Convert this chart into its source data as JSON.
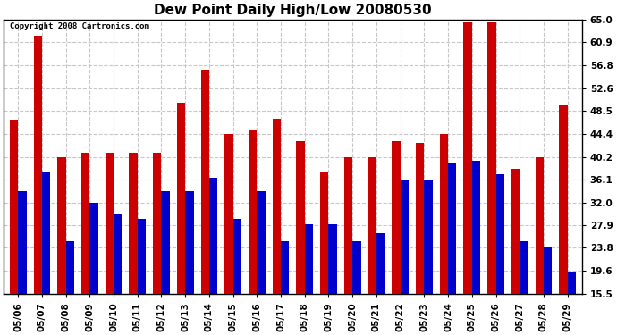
{
  "title": "Dew Point Daily High/Low 20080530",
  "copyright": "Copyright 2008 Cartronics.com",
  "dates": [
    "05/06",
    "05/07",
    "05/08",
    "05/09",
    "05/10",
    "05/11",
    "05/12",
    "05/13",
    "05/14",
    "05/15",
    "05/16",
    "05/17",
    "05/18",
    "05/19",
    "05/20",
    "05/21",
    "05/22",
    "05/23",
    "05/24",
    "05/25",
    "05/26",
    "05/27",
    "05/28",
    "05/29"
  ],
  "highs": [
    46.9,
    62.0,
    40.1,
    41.0,
    41.0,
    41.0,
    41.0,
    50.0,
    55.9,
    44.4,
    45.0,
    47.0,
    43.0,
    37.5,
    40.1,
    40.1,
    43.0,
    42.8,
    44.4,
    64.4,
    64.4,
    38.0,
    40.1,
    49.5
  ],
  "lows": [
    34.0,
    37.5,
    25.0,
    32.0,
    30.0,
    29.0,
    34.0,
    34.0,
    36.5,
    29.0,
    34.0,
    25.0,
    28.0,
    28.0,
    25.0,
    26.5,
    36.0,
    36.0,
    39.0,
    39.5,
    37.0,
    25.0,
    24.0,
    19.5
  ],
  "high_color": "#CC0000",
  "low_color": "#0000CC",
  "ylim_min": 15.5,
  "ylim_max": 65.0,
  "yticks": [
    15.5,
    19.6,
    23.8,
    27.9,
    32.0,
    36.1,
    40.2,
    44.4,
    48.5,
    52.6,
    56.8,
    60.9,
    65.0
  ],
  "background_color": "#ffffff",
  "plot_bg_color": "#ffffff",
  "grid_color": "#c8c8c8",
  "title_fontsize": 11,
  "tick_fontsize": 7.5,
  "bar_width": 0.35,
  "figwidth": 6.9,
  "figheight": 3.75,
  "dpi": 100
}
